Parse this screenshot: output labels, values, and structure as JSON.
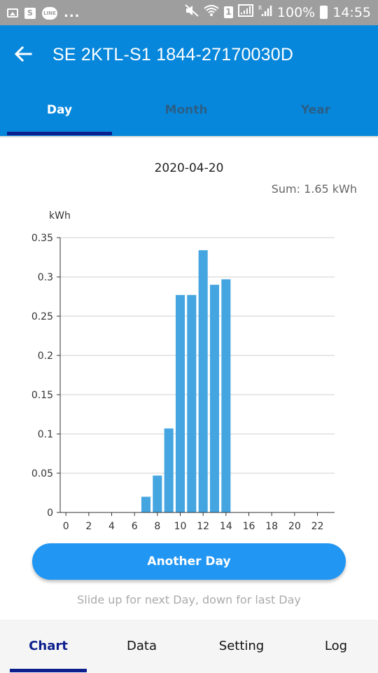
{
  "status_bar": {
    "more": "...",
    "sim_label": "1",
    "signal_label": "R",
    "battery": "100%",
    "time": "14:55",
    "icons": [
      "image-icon",
      "shop-bag-icon",
      "line-app-icon",
      "mute-icon",
      "wifi-icon",
      "sim-icon",
      "signal-icon",
      "battery-icon"
    ]
  },
  "app_bar": {
    "back_icon": "arrow-left-icon",
    "title": "SE 2KTL-S1 1844-27170030D"
  },
  "tabs": [
    {
      "label": "Day",
      "selected": true
    },
    {
      "label": "Month",
      "selected": false
    },
    {
      "label": "Year",
      "selected": false
    }
  ],
  "summary": {
    "date": "2020-04-20",
    "sum": "Sum: 1.65 kWh"
  },
  "chart_data": {
    "type": "bar",
    "ylabel": "kWh",
    "xlabel": "",
    "title": "",
    "ylim": [
      0,
      0.35
    ],
    "xlim": [
      -0.5,
      23.5
    ],
    "yticks": [
      0,
      0.05,
      0.1,
      0.15,
      0.2,
      0.25,
      0.3,
      0.35
    ],
    "ytick_labels": [
      "0",
      "0.05",
      "0.1",
      "0.15",
      "0.2",
      "0.25",
      "0.3",
      "0.35"
    ],
    "xticks": [
      0,
      2,
      4,
      6,
      8,
      10,
      12,
      14,
      16,
      18,
      20,
      22
    ],
    "xtick_labels": [
      "0",
      "2",
      "4",
      "6",
      "8",
      "10",
      "12",
      "14",
      "16",
      "18",
      "20",
      "22"
    ],
    "grid": true,
    "color": "#45a5e0",
    "x": [
      7,
      8,
      9,
      10,
      11,
      12,
      13,
      14
    ],
    "values": [
      0.02,
      0.047,
      0.107,
      0.277,
      0.277,
      0.334,
      0.29,
      0.297
    ]
  },
  "actions": {
    "another_day": "Another Day",
    "hint": "Slide up for next Day, down for last Day"
  },
  "bottom_nav": [
    {
      "label": "Chart",
      "selected": true
    },
    {
      "label": "Data",
      "selected": false
    },
    {
      "label": "Setting",
      "selected": false
    },
    {
      "label": "Log",
      "selected": false
    }
  ],
  "colors": {
    "primary": "#0787db",
    "accent": "#2196f3",
    "indicator": "#0d1f8c",
    "status_bar": "#9e9e9e"
  }
}
